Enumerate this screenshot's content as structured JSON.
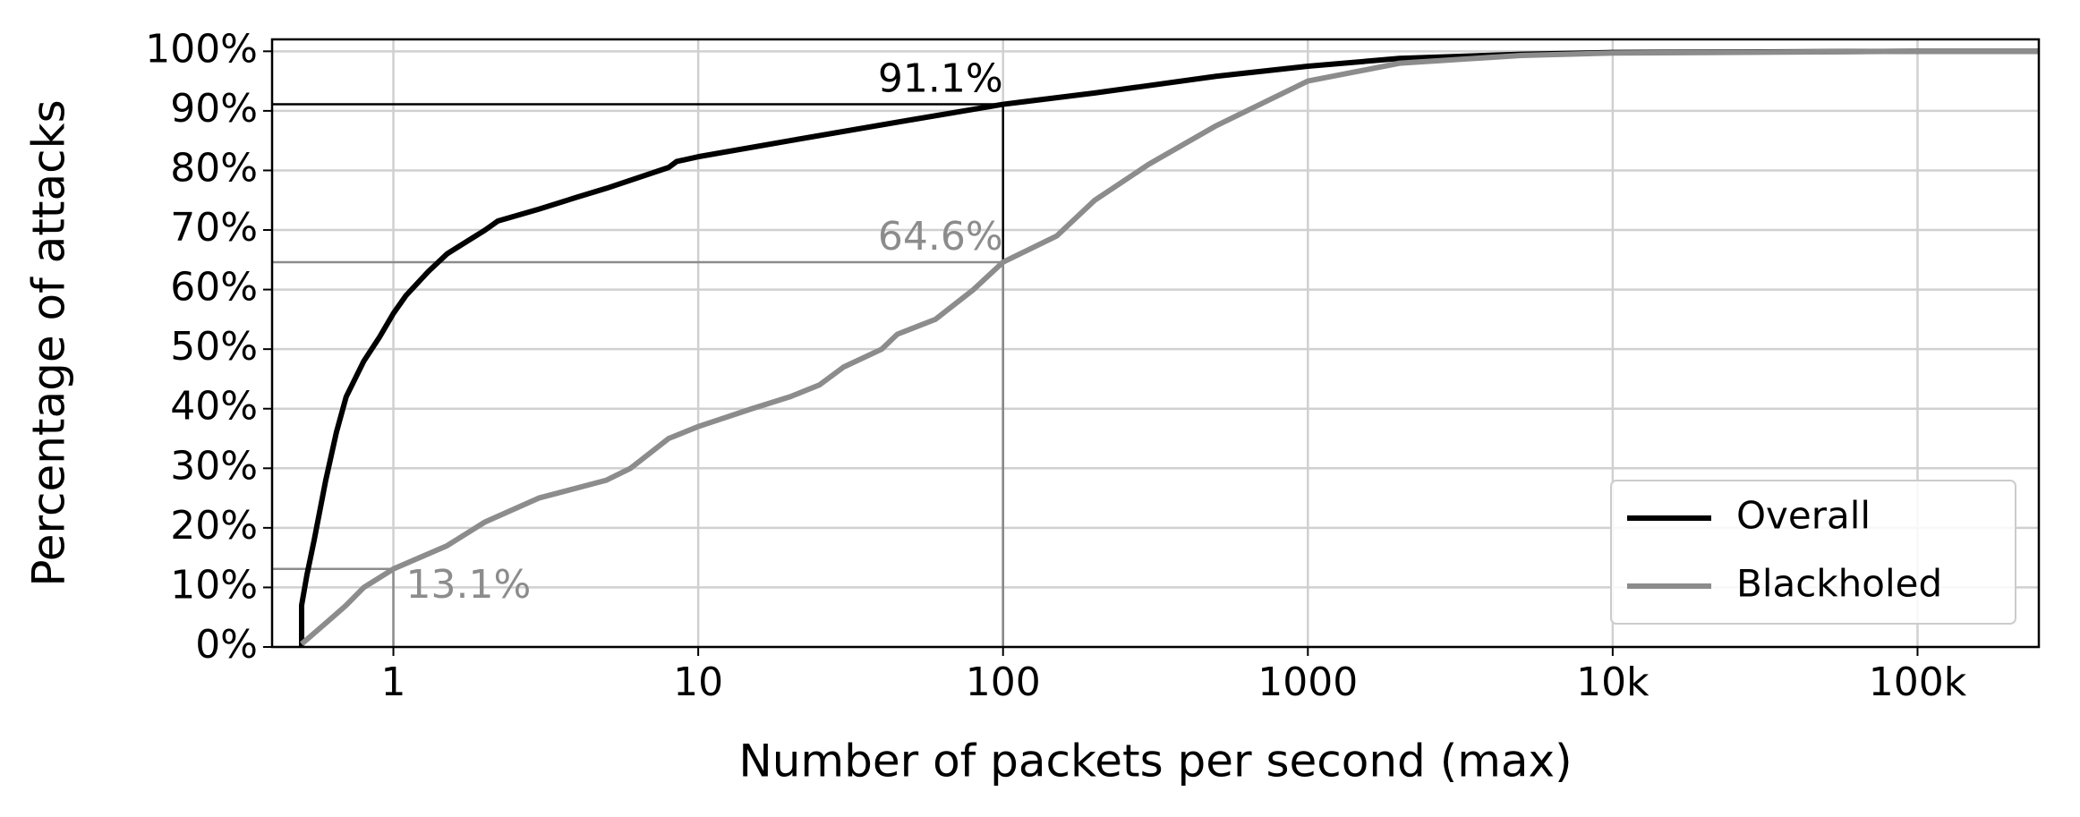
{
  "chart_data": {
    "type": "line",
    "xlabel": "Number of packets per second (max)",
    "ylabel": "Percentage of attacks",
    "xscale": "log",
    "grid": true,
    "legend": "lower right",
    "xlim": [
      0.4,
      250000
    ],
    "ylim": [
      0,
      102
    ],
    "xticks": [
      1,
      10,
      100,
      1000,
      {
        "value": 10000,
        "label": "10k"
      },
      {
        "value": 100000,
        "label": "100k"
      }
    ],
    "yticks": [
      {
        "value": 0,
        "label": "0%"
      },
      {
        "value": 10,
        "label": "10%"
      },
      {
        "value": 20,
        "label": "20%"
      },
      {
        "value": 30,
        "label": "30%"
      },
      {
        "value": 40,
        "label": "40%"
      },
      {
        "value": 50,
        "label": "50%"
      },
      {
        "value": 60,
        "label": "60%"
      },
      {
        "value": 70,
        "label": "70%"
      },
      {
        "value": 80,
        "label": "80%"
      },
      {
        "value": 90,
        "label": "90%"
      },
      {
        "value": 100,
        "label": "100%"
      }
    ],
    "series": [
      {
        "name": "Overall",
        "color": "#000000",
        "x": [
          0.5,
          0.5,
          0.52,
          0.55,
          0.6,
          0.65,
          0.7,
          0.8,
          0.9,
          1,
          1.1,
          1.3,
          1.5,
          2,
          2.2,
          3,
          4,
          5,
          8,
          8.5,
          10,
          20,
          50,
          100,
          200,
          500,
          1000,
          2000,
          5000,
          10000,
          100000,
          250000
        ],
        "values": [
          0,
          7,
          12,
          18,
          28,
          36,
          42,
          48,
          52,
          56,
          59,
          63,
          66,
          70,
          71.5,
          73.5,
          75.5,
          77,
          80.5,
          81.5,
          82.3,
          85,
          88.5,
          91.1,
          93,
          95.8,
          97.5,
          98.8,
          99.5,
          99.8,
          100,
          100
        ]
      },
      {
        "name": "Blackholed",
        "color": "#8c8c8c",
        "x": [
          0.5,
          0.6,
          0.7,
          0.8,
          1,
          1.5,
          2,
          3,
          5,
          6,
          8,
          10,
          15,
          20,
          25,
          30,
          40,
          45,
          60,
          80,
          100,
          150,
          200,
          300,
          500,
          1000,
          2000,
          5000,
          10000,
          100000,
          250000
        ],
        "values": [
          0.5,
          4,
          7,
          10,
          13.1,
          17,
          21,
          25,
          28,
          30,
          35,
          37,
          40,
          42,
          44,
          47,
          50,
          52.5,
          55,
          60,
          64.6,
          69,
          75,
          81,
          87.5,
          95,
          98,
          99.3,
          99.7,
          100,
          100
        ]
      }
    ],
    "annotations": [
      {
        "x": 100,
        "y": 91.1,
        "label": "91.1%",
        "color": "#000000"
      },
      {
        "x": 100,
        "y": 64.6,
        "label": "64.6%",
        "color": "#8c8c8c"
      },
      {
        "x": 1,
        "y": 13.1,
        "label": "13.1%",
        "color": "#8c8c8c"
      }
    ]
  }
}
